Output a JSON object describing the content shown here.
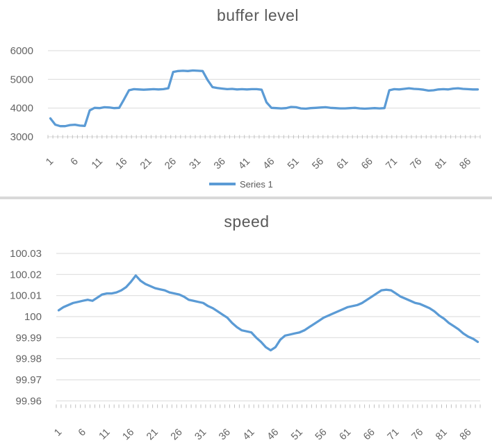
{
  "colors": {
    "series": "#5B9BD5",
    "gridline": "#D9D9D9",
    "tick": "#BFBFBF",
    "axis_text": "#636363",
    "title_text": "#595959",
    "divider": "#D9D9D9"
  },
  "chart_data": [
    {
      "type": "line",
      "title": "buffer level",
      "legend_label": "Series 1",
      "legend_position": "bottom",
      "grid": true,
      "x_range": [
        1,
        88
      ],
      "x_tick_values": [
        1,
        6,
        11,
        16,
        21,
        26,
        31,
        36,
        41,
        46,
        51,
        56,
        61,
        66,
        71,
        76,
        81,
        86
      ],
      "x_tick_labels": [
        "1",
        "6",
        "11",
        "16",
        "21",
        "26",
        "31",
        "36",
        "41",
        "46",
        "51",
        "56",
        "61",
        "66",
        "71",
        "76",
        "81",
        "86"
      ],
      "ylim": [
        3000,
        6000
      ],
      "y_ticks": [
        6000,
        5000,
        4000,
        3000
      ],
      "y_tick_labels": [
        "6000",
        "5000",
        "4000",
        "3000"
      ],
      "series": [
        {
          "name": "Series 1",
          "values": [
            3640,
            3420,
            3370,
            3370,
            3410,
            3420,
            3390,
            3380,
            3920,
            4010,
            4000,
            4030,
            4020,
            4000,
            4010,
            4310,
            4620,
            4660,
            4650,
            4640,
            4650,
            4660,
            4650,
            4660,
            4690,
            5260,
            5290,
            5300,
            5290,
            5310,
            5300,
            5290,
            4980,
            4730,
            4700,
            4680,
            4660,
            4670,
            4650,
            4660,
            4650,
            4660,
            4660,
            4640,
            4200,
            4010,
            4000,
            3990,
            4000,
            4040,
            4030,
            3990,
            3980,
            4000,
            4010,
            4020,
            4030,
            4010,
            4000,
            3990,
            3990,
            4000,
            4010,
            3990,
            3980,
            3990,
            4000,
            3990,
            4000,
            4620,
            4660,
            4650,
            4670,
            4690,
            4670,
            4660,
            4640,
            4610,
            4620,
            4650,
            4660,
            4650,
            4680,
            4690,
            4670,
            4660,
            4650,
            4650
          ]
        }
      ]
    },
    {
      "type": "line",
      "title": "speed",
      "legend_label": "",
      "legend_position": "none",
      "grid": true,
      "x_range": [
        1,
        88
      ],
      "x_tick_values": [
        1,
        6,
        11,
        16,
        21,
        26,
        31,
        36,
        41,
        46,
        51,
        56,
        61,
        66,
        71,
        76,
        81,
        86
      ],
      "x_tick_labels": [
        "1",
        "6",
        "11",
        "16",
        "21",
        "26",
        "31",
        "36",
        "41",
        "46",
        "51",
        "56",
        "61",
        "66",
        "71",
        "76",
        "81",
        "86"
      ],
      "ylim": [
        99.96,
        100.03
      ],
      "y_ticks": [
        100.03,
        100.02,
        100.01,
        100,
        99.99,
        99.98,
        99.97,
        99.96
      ],
      "y_tick_labels": [
        "100.03",
        "100.02",
        "100.01",
        "100",
        "99.99",
        "99.98",
        "99.97",
        "99.96"
      ],
      "series": [
        {
          "name": "speed",
          "values": [
            100.003,
            100.0045,
            100.0055,
            100.0065,
            100.007,
            100.0075,
            100.008,
            100.0075,
            100.009,
            100.0105,
            100.011,
            100.011,
            100.0115,
            100.0125,
            100.014,
            100.0165,
            100.0195,
            100.017,
            100.0155,
            100.0145,
            100.0135,
            100.013,
            100.0125,
            100.0115,
            100.011,
            100.0105,
            100.0095,
            100.008,
            100.0075,
            100.007,
            100.0065,
            100.005,
            100.004,
            100.0025,
            100.001,
            99.9995,
            99.997,
            99.995,
            99.9935,
            99.993,
            99.9925,
            99.99,
            99.988,
            99.9855,
            99.984,
            99.9855,
            99.989,
            99.991,
            99.9915,
            99.992,
            99.9925,
            99.9935,
            99.995,
            99.9965,
            99.998,
            99.9995,
            100.0005,
            100.0015,
            100.0025,
            100.0035,
            100.0045,
            100.005,
            100.0055,
            100.0065,
            100.008,
            100.0095,
            100.011,
            100.0125,
            100.0128,
            100.0125,
            100.011,
            100.0095,
            100.0085,
            100.0075,
            100.0065,
            100.006,
            100.005,
            100.004,
            100.0025,
            100.0005,
            99.999,
            99.997,
            99.9955,
            99.994,
            99.992,
            99.9905,
            99.9895,
            99.988
          ]
        }
      ]
    }
  ]
}
